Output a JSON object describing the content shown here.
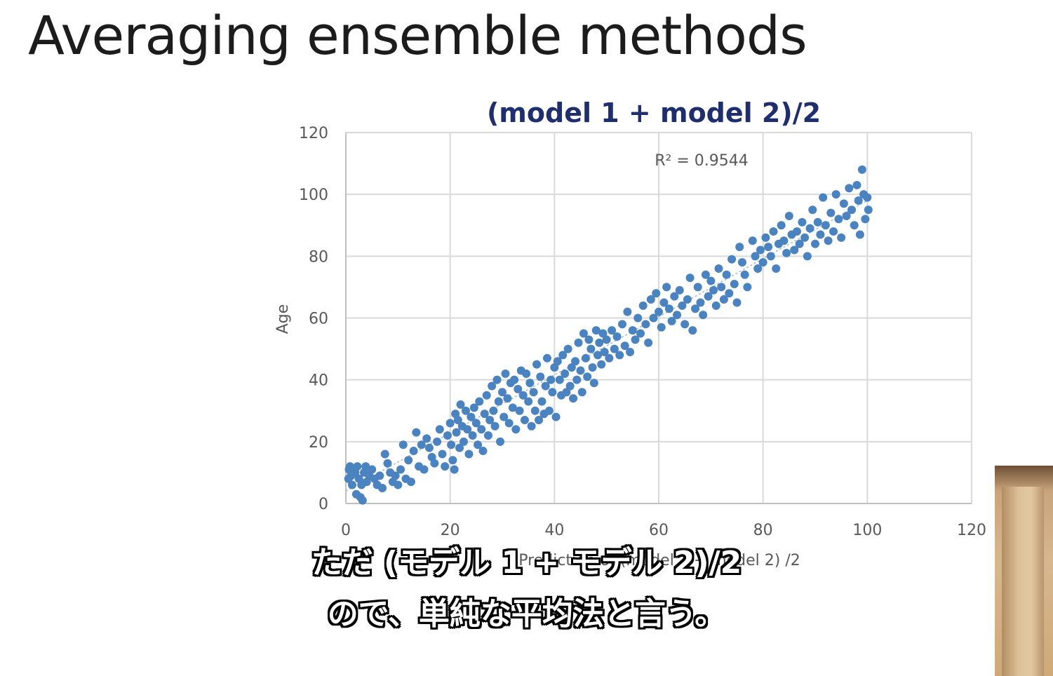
{
  "slide": {
    "title": "Averaging ensemble methods"
  },
  "chart_data": {
    "type": "scatter",
    "title": "(model 1 + model 2)/2",
    "xlabel": "Prediction of (model 1 + model 2) /2",
    "ylabel": "Age",
    "xlim": [
      0,
      120
    ],
    "ylim": [
      0,
      120
    ],
    "xticks": [
      0,
      20,
      40,
      60,
      80,
      100,
      120
    ],
    "yticks": [
      0,
      20,
      40,
      60,
      80,
      100,
      120
    ],
    "grid": true,
    "annotation": "R² = 0.9544",
    "series_color": "#4a83c0",
    "title_color": "#1f2f6e",
    "points": [
      [
        0.5,
        8
      ],
      [
        0.6,
        11
      ],
      [
        0.8,
        12
      ],
      [
        1,
        9
      ],
      [
        1.2,
        6
      ],
      [
        1.5,
        11
      ],
      [
        1.8,
        10
      ],
      [
        2,
        3
      ],
      [
        2.2,
        12
      ],
      [
        2.5,
        8
      ],
      [
        2.8,
        2
      ],
      [
        3,
        6
      ],
      [
        3.2,
        1
      ],
      [
        3.5,
        10
      ],
      [
        3.8,
        12
      ],
      [
        4,
        7
      ],
      [
        4.5,
        9
      ],
      [
        5,
        11
      ],
      [
        5.5,
        8
      ],
      [
        6,
        6
      ],
      [
        6.5,
        9
      ],
      [
        7,
        5
      ],
      [
        7.5,
        16
      ],
      [
        8,
        13
      ],
      [
        8.5,
        10
      ],
      [
        9,
        7
      ],
      [
        9.5,
        9
      ],
      [
        10,
        6
      ],
      [
        10.5,
        11
      ],
      [
        11,
        19
      ],
      [
        11.5,
        8
      ],
      [
        12,
        14
      ],
      [
        12.5,
        7
      ],
      [
        13,
        17
      ],
      [
        13.5,
        23
      ],
      [
        14,
        12
      ],
      [
        14.5,
        19
      ],
      [
        15,
        11
      ],
      [
        15.5,
        21
      ],
      [
        16,
        18
      ],
      [
        16.5,
        15
      ],
      [
        17,
        13
      ],
      [
        17.5,
        20
      ],
      [
        18,
        24
      ],
      [
        18.5,
        16
      ],
      [
        19,
        12
      ],
      [
        19.5,
        22
      ],
      [
        20,
        26
      ],
      [
        20.2,
        19
      ],
      [
        20.5,
        14
      ],
      [
        20.8,
        11
      ],
      [
        21,
        29
      ],
      [
        21.2,
        23
      ],
      [
        21.5,
        27
      ],
      [
        21.8,
        18
      ],
      [
        22,
        32
      ],
      [
        22.3,
        25
      ],
      [
        22.6,
        20
      ],
      [
        23,
        30
      ],
      [
        23.3,
        24
      ],
      [
        23.6,
        16
      ],
      [
        24,
        28
      ],
      [
        24.3,
        22
      ],
      [
        24.6,
        31
      ],
      [
        25,
        26
      ],
      [
        25.3,
        19
      ],
      [
        25.6,
        33
      ],
      [
        26,
        24
      ],
      [
        26.3,
        17
      ],
      [
        26.6,
        29
      ],
      [
        27,
        35
      ],
      [
        27.3,
        22
      ],
      [
        27.6,
        27
      ],
      [
        28,
        38
      ],
      [
        28.3,
        30
      ],
      [
        28.6,
        25
      ],
      [
        29,
        40
      ],
      [
        29.3,
        33
      ],
      [
        29.6,
        20
      ],
      [
        30,
        36
      ],
      [
        30.3,
        28
      ],
      [
        30.6,
        42
      ],
      [
        31,
        34
      ],
      [
        31.3,
        26
      ],
      [
        31.6,
        39
      ],
      [
        32,
        31
      ],
      [
        32.3,
        40
      ],
      [
        32.6,
        24
      ],
      [
        33,
        37
      ],
      [
        33.3,
        30
      ],
      [
        33.6,
        43
      ],
      [
        34,
        35
      ],
      [
        34.3,
        27
      ],
      [
        34.6,
        42
      ],
      [
        35,
        33
      ],
      [
        35.3,
        39
      ],
      [
        35.6,
        25
      ],
      [
        36,
        36
      ],
      [
        36.3,
        30
      ],
      [
        36.6,
        45
      ],
      [
        37,
        27
      ],
      [
        37.3,
        41
      ],
      [
        37.6,
        33
      ],
      [
        38,
        29
      ],
      [
        38.3,
        38
      ],
      [
        38.6,
        47
      ],
      [
        39,
        30
      ],
      [
        39.3,
        40
      ],
      [
        39.6,
        36
      ],
      [
        40,
        44
      ],
      [
        40.3,
        28
      ],
      [
        40.6,
        46
      ],
      [
        41,
        40
      ],
      [
        41.3,
        35
      ],
      [
        41.6,
        48
      ],
      [
        42,
        42
      ],
      [
        42.3,
        36
      ],
      [
        42.6,
        50
      ],
      [
        43,
        38
      ],
      [
        43.3,
        44
      ],
      [
        43.6,
        34
      ],
      [
        44,
        46
      ],
      [
        44.3,
        40
      ],
      [
        44.6,
        52
      ],
      [
        45,
        43
      ],
      [
        45.3,
        36
      ],
      [
        45.6,
        55
      ],
      [
        46,
        47
      ],
      [
        46.3,
        41
      ],
      [
        46.6,
        53
      ],
      [
        47,
        50
      ],
      [
        47.3,
        44
      ],
      [
        47.6,
        39
      ],
      [
        48,
        56
      ],
      [
        48.3,
        48
      ],
      [
        48.6,
        52
      ],
      [
        49,
        45
      ],
      [
        49.3,
        55
      ],
      [
        49.6,
        49
      ],
      [
        50,
        53
      ],
      [
        50.5,
        47
      ],
      [
        51,
        56
      ],
      [
        51.5,
        50
      ],
      [
        52,
        54
      ],
      [
        52.5,
        48
      ],
      [
        53,
        58
      ],
      [
        53.5,
        51
      ],
      [
        54,
        62
      ],
      [
        54.5,
        49
      ],
      [
        55,
        56
      ],
      [
        55.5,
        53
      ],
      [
        56,
        60
      ],
      [
        56.5,
        55
      ],
      [
        57,
        64
      ],
      [
        57.5,
        58
      ],
      [
        58,
        52
      ],
      [
        58.5,
        66
      ],
      [
        59,
        60
      ],
      [
        59.5,
        68
      ],
      [
        60,
        62
      ],
      [
        60.5,
        57
      ],
      [
        61,
        65
      ],
      [
        61.5,
        70
      ],
      [
        62,
        63
      ],
      [
        62.5,
        59
      ],
      [
        63,
        67
      ],
      [
        63.5,
        61
      ],
      [
        64,
        69
      ],
      [
        64.5,
        64
      ],
      [
        65,
        58
      ],
      [
        65.5,
        66
      ],
      [
        66,
        73
      ],
      [
        66.5,
        56
      ],
      [
        67,
        63
      ],
      [
        67.5,
        70
      ],
      [
        68,
        65
      ],
      [
        68.5,
        61
      ],
      [
        69,
        74
      ],
      [
        69.5,
        67
      ],
      [
        70,
        72
      ],
      [
        70.5,
        69
      ],
      [
        71,
        64
      ],
      [
        71.5,
        76
      ],
      [
        72,
        70
      ],
      [
        72.5,
        66
      ],
      [
        73,
        74
      ],
      [
        73.5,
        68
      ],
      [
        74,
        79
      ],
      [
        74.5,
        71
      ],
      [
        75,
        65
      ],
      [
        75.5,
        83
      ],
      [
        76,
        78
      ],
      [
        76.5,
        74
      ],
      [
        77,
        70
      ],
      [
        78,
        85
      ],
      [
        78.5,
        80
      ],
      [
        79,
        76
      ],
      [
        79.5,
        82
      ],
      [
        80,
        78
      ],
      [
        80.5,
        86
      ],
      [
        81,
        83
      ],
      [
        81.5,
        80
      ],
      [
        82,
        88
      ],
      [
        82.5,
        76
      ],
      [
        83,
        84
      ],
      [
        83.5,
        90
      ],
      [
        84,
        85
      ],
      [
        84.5,
        81
      ],
      [
        85,
        93
      ],
      [
        85.5,
        87
      ],
      [
        86,
        82
      ],
      [
        86.5,
        88
      ],
      [
        87,
        84
      ],
      [
        87.5,
        91
      ],
      [
        88,
        86
      ],
      [
        88.5,
        80
      ],
      [
        89,
        89
      ],
      [
        89.5,
        95
      ],
      [
        90,
        84
      ],
      [
        90.5,
        91
      ],
      [
        91,
        87
      ],
      [
        91.5,
        99
      ],
      [
        92,
        90
      ],
      [
        92.5,
        85
      ],
      [
        93,
        94
      ],
      [
        93.5,
        88
      ],
      [
        94,
        100
      ],
      [
        94.5,
        92
      ],
      [
        95,
        86
      ],
      [
        95.5,
        97
      ],
      [
        96,
        93
      ],
      [
        96.5,
        102
      ],
      [
        97,
        95
      ],
      [
        97.5,
        90
      ],
      [
        98,
        103
      ],
      [
        98.3,
        98
      ],
      [
        98.6,
        87
      ],
      [
        99,
        108
      ],
      [
        99.3,
        100
      ],
      [
        99.6,
        92
      ],
      [
        100,
        99
      ],
      [
        100.2,
        95
      ]
    ]
  },
  "captions": {
    "line1": "ただ (モデル 1 + モデル 2)/2",
    "line2": "ので、単純な平均法と言う。"
  }
}
